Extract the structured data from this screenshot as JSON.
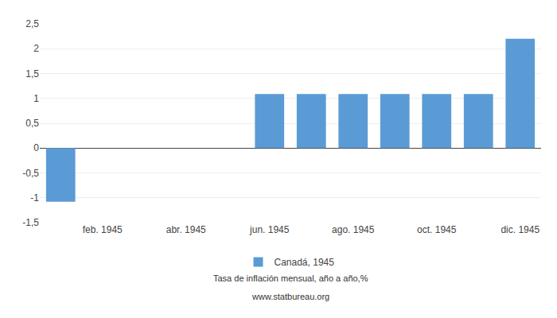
{
  "chart_data": {
    "type": "bar",
    "subtitle": "Tasa de inflación mensual, año a año,%",
    "annotations": [
      "www.statbureau.org"
    ],
    "categories": [
      null,
      "feb. 1945",
      null,
      "abr. 1945",
      null,
      "jun. 1945",
      null,
      "ago. 1945",
      null,
      "oct. 1945",
      null,
      "dic. 1945"
    ],
    "series": [
      {
        "name": "Canadá, 1945",
        "color": "#5B9BD5",
        "values": [
          -1.08,
          null,
          null,
          null,
          null,
          1.09,
          1.09,
          1.09,
          1.09,
          1.09,
          1.09,
          2.2
        ]
      }
    ],
    "ylim": [
      -1.5,
      2.5
    ],
    "yticks": [
      {
        "value": -1.5,
        "label": "-1,5"
      },
      -1,
      {
        "value": -0.5,
        "label": "-0,5"
      },
      0,
      {
        "value": 0.5,
        "label": "0,5"
      },
      1,
      {
        "value": 1.5,
        "label": "1,5"
      },
      2,
      {
        "value": 2.5,
        "label": "2,5"
      }
    ],
    "grid": true,
    "legend": "bottom"
  }
}
